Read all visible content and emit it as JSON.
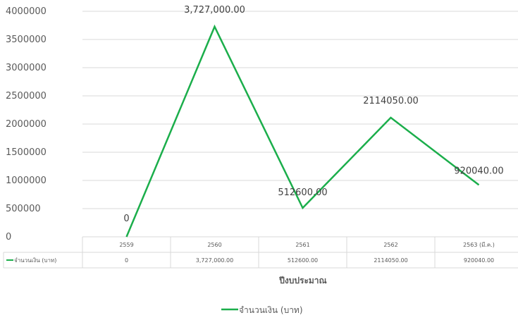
{
  "chart_data": {
    "type": "line",
    "categories": [
      "2559",
      "2560",
      "2561",
      "2562",
      "2563 (มี.ค.)"
    ],
    "series": [
      {
        "name": "จำนวนเงิน (บาท)",
        "values": [
          0,
          3727000,
          512600,
          2114050,
          920040
        ],
        "data_labels": [
          "0",
          "3,727,000.00",
          "512600.00",
          "2114050.00",
          "920040.00"
        ],
        "color": "#1BAE4B"
      }
    ],
    "y_ticks": [
      "0",
      "500000",
      "1000000",
      "1500000",
      "2000000",
      "2500000",
      "3000000",
      "3500000",
      "4000000"
    ],
    "ylim": [
      0,
      4000000
    ],
    "xlabel": "ปีงบประมาณ",
    "grid": true,
    "legend_position": "bottom",
    "data_table": true
  }
}
